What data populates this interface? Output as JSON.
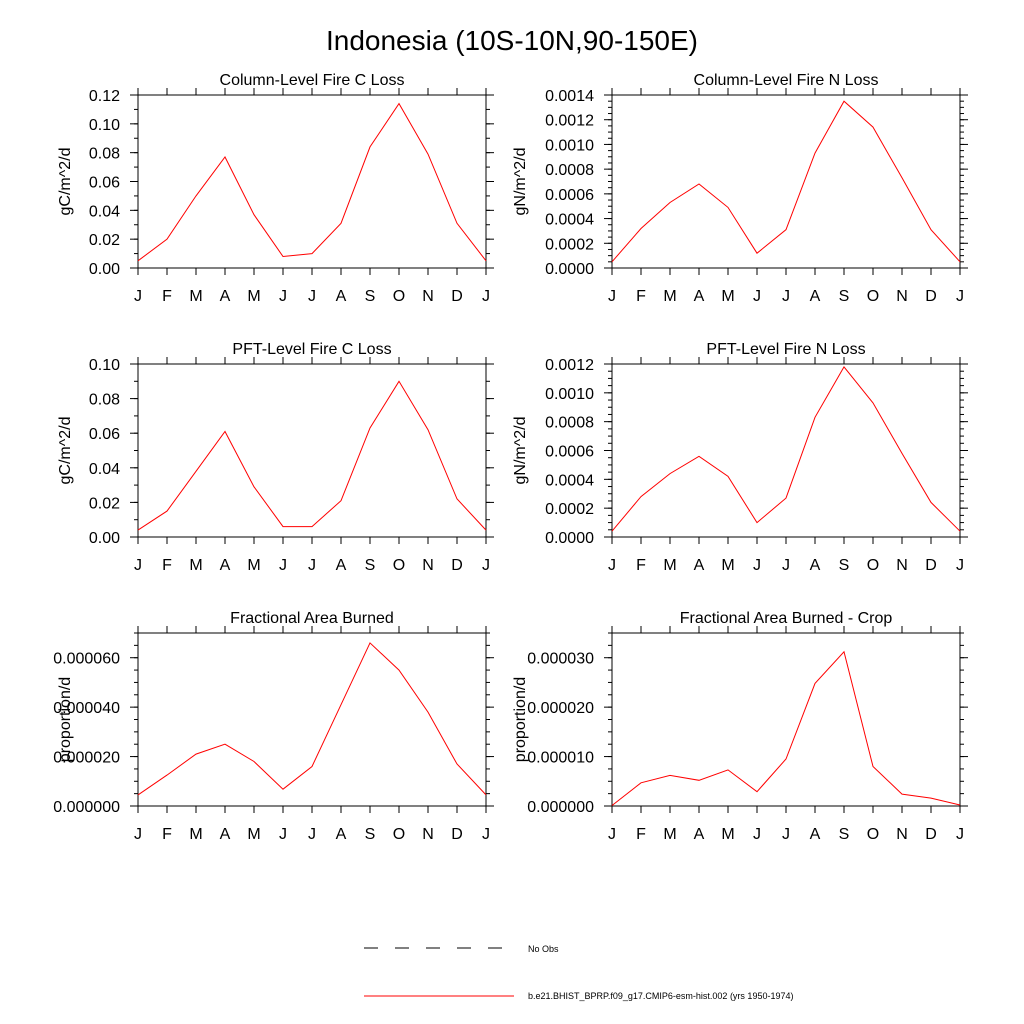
{
  "figure_title": "Indonesia (10S-10N,90-150E)",
  "months": [
    "J",
    "F",
    "M",
    "A",
    "M",
    "J",
    "J",
    "A",
    "S",
    "O",
    "N",
    "D",
    "J"
  ],
  "colors": {
    "series": "#ff0000",
    "obs": "#000000",
    "axes": "#000000"
  },
  "legend": {
    "obs_label": "No Obs",
    "series_label": "b.e21.BHIST_BPRP.f09_g17.CMIP6-esm-hist.002 (yrs 1950-1974)"
  },
  "chart_data": [
    {
      "type": "line",
      "title": "Column-Level Fire C Loss",
      "ylabel": "gC/m^2/d",
      "xlabel": "",
      "categories": [
        "J",
        "F",
        "M",
        "A",
        "M",
        "J",
        "J",
        "A",
        "S",
        "O",
        "N",
        "D",
        "J"
      ],
      "ylim": [
        0,
        0.12
      ],
      "yticks": [
        "0.00",
        "0.02",
        "0.04",
        "0.06",
        "0.08",
        "0.10",
        "0.12"
      ],
      "yminor": 0.01,
      "series": [
        {
          "values": [
            0.005,
            0.02,
            0.05,
            0.077,
            0.037,
            0.008,
            0.01,
            0.031,
            0.084,
            0.114,
            0.079,
            0.031,
            0.005
          ]
        }
      ]
    },
    {
      "type": "line",
      "title": "Column-Level Fire N Loss",
      "ylabel": "gN/m^2/d",
      "xlabel": "",
      "categories": [
        "J",
        "F",
        "M",
        "A",
        "M",
        "J",
        "J",
        "A",
        "S",
        "O",
        "N",
        "D",
        "J"
      ],
      "ylim": [
        0,
        0.0014
      ],
      "yticks": [
        "0.0000",
        "0.0002",
        "0.0004",
        "0.0006",
        "0.0008",
        "0.0010",
        "0.0012",
        "0.0014"
      ],
      "yminor": 5e-05,
      "series": [
        {
          "values": [
            5e-05,
            0.00032,
            0.00053,
            0.00068,
            0.00049,
            0.00012,
            0.00031,
            0.00093,
            0.00135,
            0.00114,
            0.00073,
            0.00031,
            5e-05
          ]
        }
      ]
    },
    {
      "type": "line",
      "title": "PFT-Level Fire C Loss",
      "ylabel": "gC/m^2/d",
      "xlabel": "",
      "categories": [
        "J",
        "F",
        "M",
        "A",
        "M",
        "J",
        "J",
        "A",
        "S",
        "O",
        "N",
        "D",
        "J"
      ],
      "ylim": [
        0,
        0.1
      ],
      "yticks": [
        "0.00",
        "0.02",
        "0.04",
        "0.06",
        "0.08",
        "0.10"
      ],
      "yminor": 0.01,
      "series": [
        {
          "values": [
            0.004,
            0.015,
            0.038,
            0.061,
            0.029,
            0.006,
            0.006,
            0.021,
            0.063,
            0.09,
            0.062,
            0.022,
            0.004
          ]
        }
      ]
    },
    {
      "type": "line",
      "title": "PFT-Level Fire N Loss",
      "ylabel": "gN/m^2/d",
      "xlabel": "",
      "categories": [
        "J",
        "F",
        "M",
        "A",
        "M",
        "J",
        "J",
        "A",
        "S",
        "O",
        "N",
        "D",
        "J"
      ],
      "ylim": [
        0,
        0.0012
      ],
      "yticks": [
        "0.0000",
        "0.0002",
        "0.0004",
        "0.0006",
        "0.0008",
        "0.0010",
        "0.0012"
      ],
      "yminor": 5e-05,
      "series": [
        {
          "values": [
            4e-05,
            0.00028,
            0.00044,
            0.00056,
            0.00042,
            0.0001,
            0.00027,
            0.00083,
            0.00118,
            0.00093,
            0.00058,
            0.00024,
            4e-05
          ]
        }
      ]
    },
    {
      "type": "line",
      "title": "Fractional Area Burned",
      "ylabel": "proportion/d",
      "xlabel": "",
      "categories": [
        "J",
        "F",
        "M",
        "A",
        "M",
        "J",
        "J",
        "A",
        "S",
        "O",
        "N",
        "D",
        "J"
      ],
      "ylim": [
        0,
        7e-05
      ],
      "yticks": [
        "0.000000",
        "0.000020",
        "0.000040",
        "0.000060"
      ],
      "yminor": 5e-06,
      "series": [
        {
          "values": [
            4.5e-06,
            1.25e-05,
            2.1e-05,
            2.5e-05,
            1.8e-05,
            6.8e-06,
            1.6e-05,
            4.1e-05,
            6.6e-05,
            5.5e-05,
            3.8e-05,
            1.7e-05,
            4.5e-06
          ]
        }
      ]
    },
    {
      "type": "line",
      "title": "Fractional Area Burned - Crop",
      "ylabel": "proportion/d",
      "xlabel": "",
      "categories": [
        "J",
        "F",
        "M",
        "A",
        "M",
        "J",
        "J",
        "A",
        "S",
        "O",
        "N",
        "D",
        "J"
      ],
      "ylim": [
        0,
        3.5e-05
      ],
      "yticks": [
        "0.000000",
        "0.000010",
        "0.000020",
        "0.000030"
      ],
      "yminor": 2.5e-06,
      "series": [
        {
          "values": [
            1e-07,
            4.7e-06,
            6.2e-06,
            5.2e-06,
            7.3e-06,
            2.9e-06,
            9.5e-06,
            2.48e-05,
            3.12e-05,
            8e-06,
            2.4e-06,
            1.6e-06,
            2e-07
          ]
        }
      ]
    }
  ]
}
